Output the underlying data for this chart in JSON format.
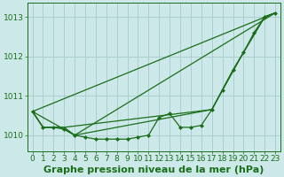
{
  "background_color": "#cce8e8",
  "grid_color": "#aacece",
  "line_color": "#1a6e1a",
  "title": "Graphe pression niveau de la mer (hPa)",
  "xlim": [
    -0.5,
    23.5
  ],
  "ylim": [
    1009.6,
    1013.35
  ],
  "yticks": [
    1010,
    1011,
    1012,
    1013
  ],
  "xticks": [
    0,
    1,
    2,
    3,
    4,
    5,
    6,
    7,
    8,
    9,
    10,
    11,
    12,
    13,
    14,
    15,
    16,
    17,
    18,
    19,
    20,
    21,
    22,
    23
  ],
  "series_data": [
    {
      "x": [
        0,
        1,
        2,
        3,
        4,
        5,
        6,
        7,
        8,
        9,
        10,
        11,
        12,
        13,
        14,
        15,
        16,
        17,
        18,
        19,
        20,
        21,
        22,
        23
      ],
      "y": [
        1010.6,
        1010.2,
        1010.2,
        1010.15,
        1010.0,
        1009.95,
        1009.9,
        1009.9,
        1009.9,
        1009.9,
        1009.95,
        1010.0,
        1010.45,
        1010.55,
        1010.2,
        1010.2,
        1010.25,
        1010.65,
        1011.15,
        1011.65,
        1012.1,
        1012.6,
        1013.0,
        1013.1
      ],
      "markers": true,
      "lw": 0.9
    },
    {
      "x": [
        0,
        1,
        2,
        3,
        17,
        20,
        21,
        22,
        23
      ],
      "y": [
        1010.6,
        1010.2,
        1010.2,
        1010.2,
        1010.65,
        1012.1,
        1012.55,
        1013.0,
        1013.1
      ],
      "markers": false,
      "lw": 0.9
    },
    {
      "x": [
        0,
        1,
        2,
        3,
        4,
        17,
        19,
        20,
        21,
        22,
        23
      ],
      "y": [
        1010.6,
        1010.2,
        1010.2,
        1010.2,
        1010.0,
        1010.65,
        1011.65,
        1012.1,
        1012.55,
        1013.0,
        1013.1
      ],
      "markers": false,
      "lw": 0.9
    },
    {
      "x": [
        0,
        23
      ],
      "y": [
        1010.6,
        1013.1
      ],
      "markers": false,
      "lw": 0.9
    },
    {
      "x": [
        0,
        4,
        23
      ],
      "y": [
        1010.6,
        1010.0,
        1013.1
      ],
      "markers": false,
      "lw": 0.9
    }
  ],
  "title_fontsize": 8,
  "tick_fontsize": 6.5,
  "title_color": "#1a6e1a",
  "tick_color": "#1a6e1a",
  "spine_color": "#1a6e1a"
}
